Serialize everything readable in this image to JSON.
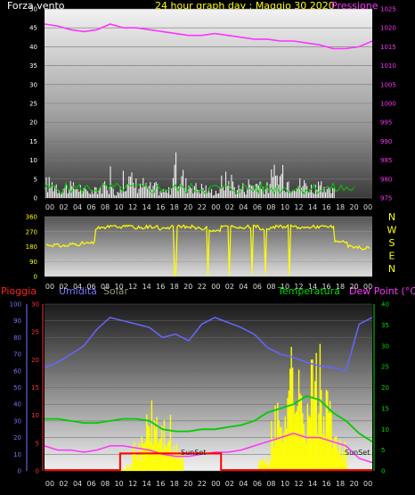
{
  "title": "24 hour graph day : Maggio 30 2020",
  "wind": {
    "label_speed": "Forza vento",
    "label_pressure": "Pressione",
    "speed_ticks": [
      "0",
      "5",
      "10",
      "15",
      "20",
      "25",
      "30",
      "35",
      "40",
      "45",
      "50"
    ],
    "pressure_ticks": [
      "975",
      "980",
      "985",
      "990",
      "995",
      "1000",
      "1005",
      "1010",
      "1015",
      "1020",
      "1025"
    ]
  },
  "direction": {
    "ticks": [
      "0",
      "90",
      "180",
      "270",
      "360"
    ],
    "compass": [
      "N",
      "W",
      "S",
      "E",
      "N"
    ]
  },
  "lower": {
    "label_rain": "Pioggia",
    "label_humidity": "Umidita",
    "label_solar": "Solar",
    "label_temp": "Temperatura",
    "label_dew": "Dew Point (°C)",
    "humidity_ticks": [
      "0",
      "10",
      "20",
      "30",
      "40",
      "50",
      "60",
      "70",
      "80",
      "90",
      "100"
    ],
    "rain_ticks": [
      "0",
      "5",
      "10",
      "15",
      "20",
      "25",
      "30"
    ],
    "temp_ticks": [
      "0",
      "5",
      "10",
      "15",
      "20",
      "25",
      "30",
      "35",
      "40"
    ],
    "sunset_labels": [
      "SunSet",
      "SunSet"
    ]
  },
  "x_labels": [
    "00",
    "02",
    "04",
    "06",
    "08",
    "10",
    "12",
    "14",
    "16",
    "18",
    "20",
    "22",
    "00",
    "02",
    "04",
    "06",
    "08",
    "10",
    "12",
    "14",
    "16",
    "18",
    "20",
    "00"
  ],
  "colors": {
    "pressure": "#ff33ff",
    "wind": "#ffffff",
    "gust": "#00cc00",
    "direction": "#ffff00",
    "humidity": "#6666ff",
    "temp": "#00cc00",
    "dew": "#ff33ff",
    "rain": "#ff0000",
    "solar": "#ffff00",
    "title": "#ffff00"
  },
  "chart_data": [
    {
      "type": "line",
      "xlabel": "",
      "ylabel": "Forza vento",
      "ylim": [
        0,
        50
      ],
      "y2label": "Pressione",
      "y2lim": [
        975,
        1025
      ],
      "series": [
        {
          "name": "Pressione",
          "axis": "right",
          "values": [
            1021,
            1020.5,
            1019.5,
            1019,
            1019.5,
            1021,
            1020,
            1020,
            1019.5,
            1019,
            1018.5,
            1018,
            1018,
            1018.5,
            1018,
            1017.5,
            1017,
            1017,
            1016.5,
            1016.5,
            1016,
            1015.5,
            1014.5,
            1014.5,
            1015,
            1016.5
          ]
        },
        {
          "name": "Forza vento",
          "axis": "left",
          "values": [
            4,
            3,
            3,
            2,
            3,
            2,
            5,
            4,
            3,
            2,
            6,
            4,
            3,
            2,
            5,
            3,
            4,
            3,
            6,
            5,
            4,
            3,
            2,
            0,
            0,
            0
          ]
        }
      ]
    },
    {
      "type": "line",
      "ylim": [
        0,
        360
      ],
      "series": [
        {
          "name": "Direzione",
          "values": [
            190,
            185,
            195,
            200,
            290,
            300,
            300,
            295,
            300,
            290,
            300,
            300,
            290,
            280,
            300,
            295,
            300,
            290,
            300,
            300,
            295,
            300,
            300,
            210,
            180,
            170
          ]
        }
      ]
    },
    {
      "type": "line",
      "ylim": [
        0,
        100
      ],
      "y2lim": [
        0,
        40
      ],
      "series": [
        {
          "name": "Umidita",
          "axis": "left",
          "values": [
            62,
            65,
            70,
            75,
            85,
            92,
            90,
            88,
            86,
            80,
            82,
            78,
            88,
            92,
            89,
            86,
            82,
            74,
            70,
            68,
            65,
            63,
            62,
            60,
            88,
            92
          ]
        },
        {
          "name": "Temperatura",
          "axis": "right",
          "values": [
            12.5,
            12.5,
            12,
            11.5,
            11.5,
            12,
            12.5,
            12.5,
            12,
            10,
            9.5,
            9.5,
            10,
            10,
            10.5,
            11,
            12,
            14,
            15,
            16,
            18,
            17,
            14,
            12,
            9,
            7
          ]
        },
        {
          "name": "Dew Point",
          "axis": "right",
          "values": [
            6,
            5,
            5,
            4.5,
            5,
            6,
            6,
            5.5,
            5,
            4,
            3.5,
            3.5,
            4,
            4.5,
            4.5,
            5,
            6,
            7,
            8,
            9,
            8,
            8,
            7,
            6,
            3,
            2
          ]
        },
        {
          "name": "Pioggia",
          "axis": "rain",
          "values": [
            0,
            0,
            0,
            0,
            0,
            0,
            3,
            3,
            3,
            3,
            3,
            3,
            3,
            3,
            0,
            0,
            0,
            0,
            0,
            0,
            0,
            0,
            0,
            0,
            0,
            0
          ]
        },
        {
          "name": "Solar",
          "axis": "right",
          "values": [
            0,
            0,
            0,
            0,
            0,
            0,
            1,
            5,
            10,
            8,
            4,
            0,
            0,
            0,
            0,
            0,
            0,
            2,
            10,
            20,
            15,
            18,
            12,
            5,
            0,
            0
          ]
        }
      ]
    }
  ]
}
